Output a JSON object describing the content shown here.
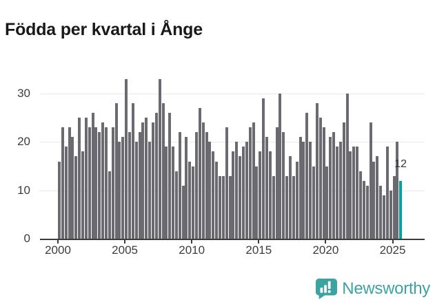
{
  "title": "Födda per kvartal i Ånge",
  "chart_data": {
    "type": "bar",
    "title": "Födda per kvartal i Ånge",
    "frequency": "quarterly",
    "x_start": "2000 Q1",
    "x_end": "2025 Q3",
    "series": [
      {
        "year": 2000,
        "values": [
          16,
          23,
          19,
          23
        ]
      },
      {
        "year": 2001,
        "values": [
          21,
          17,
          25,
          18
        ]
      },
      {
        "year": 2002,
        "values": [
          25,
          23,
          26,
          23
        ]
      },
      {
        "year": 2003,
        "values": [
          22,
          24,
          23,
          14
        ]
      },
      {
        "year": 2004,
        "values": [
          23,
          28,
          20,
          21
        ]
      },
      {
        "year": 2005,
        "values": [
          33,
          22,
          28,
          20
        ]
      },
      {
        "year": 2006,
        "values": [
          22,
          24,
          25,
          20
        ]
      },
      {
        "year": 2007,
        "values": [
          24,
          26,
          33,
          28
        ]
      },
      {
        "year": 2008,
        "values": [
          19,
          26,
          19,
          14
        ]
      },
      {
        "year": 2009,
        "values": [
          22,
          11,
          21,
          16
        ]
      },
      {
        "year": 2010,
        "values": [
          15,
          22,
          27,
          24
        ]
      },
      {
        "year": 2011,
        "values": [
          22,
          20,
          18,
          16
        ]
      },
      {
        "year": 2012,
        "values": [
          13,
          13,
          23,
          13
        ]
      },
      {
        "year": 2013,
        "values": [
          18,
          20,
          17,
          19
        ]
      },
      {
        "year": 2014,
        "values": [
          20,
          23,
          24,
          15
        ]
      },
      {
        "year": 2015,
        "values": [
          18,
          29,
          21,
          18
        ]
      },
      {
        "year": 2016,
        "values": [
          13,
          23,
          30,
          22
        ]
      },
      {
        "year": 2017,
        "values": [
          13,
          17,
          13,
          16
        ]
      },
      {
        "year": 2018,
        "values": [
          21,
          20,
          26,
          20
        ]
      },
      {
        "year": 2019,
        "values": [
          15,
          28,
          25,
          23
        ]
      },
      {
        "year": 2020,
        "values": [
          15,
          21,
          22,
          19
        ]
      },
      {
        "year": 2021,
        "values": [
          20,
          24,
          30,
          18
        ]
      },
      {
        "year": 2022,
        "values": [
          19,
          19,
          14,
          12
        ]
      },
      {
        "year": 2023,
        "values": [
          11,
          24,
          16,
          17
        ]
      },
      {
        "year": 2024,
        "values": [
          11,
          9,
          19,
          10
        ]
      },
      {
        "year": 2025,
        "values": [
          13,
          20,
          12
        ]
      }
    ],
    "yticks": [
      0,
      10,
      20,
      30
    ],
    "ylim": [
      0,
      34
    ],
    "xticks": [
      "2000",
      "2005",
      "2010",
      "2015",
      "2020",
      "2025"
    ],
    "grid": "horizontal",
    "bar_color": "#6a6a70",
    "highlight": {
      "position": "last",
      "label": "12",
      "value": 12,
      "color": "#00a2a2"
    }
  },
  "branding": {
    "name": "Newsworthy",
    "color": "#3da3a1",
    "icon": "newsworthy-speech-bubble-chart-icon"
  }
}
